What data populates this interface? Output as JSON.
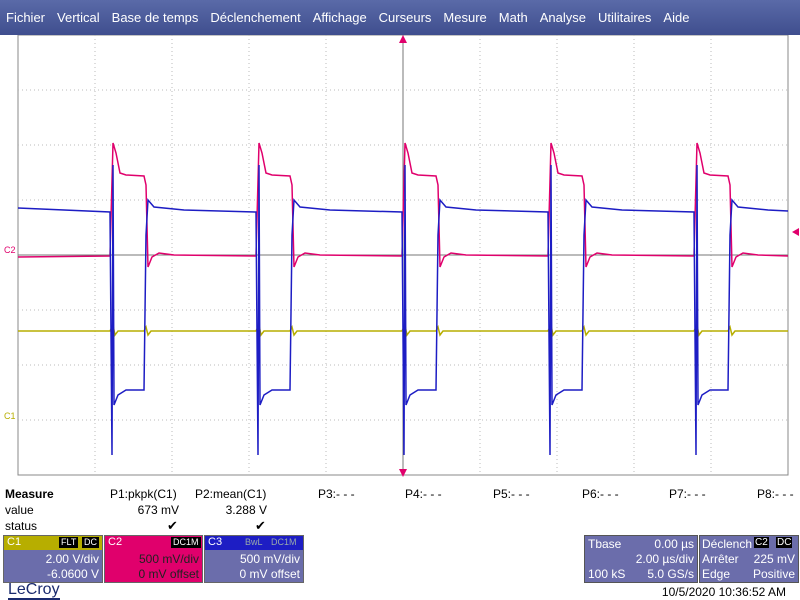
{
  "menu": [
    "Fichier",
    "Vertical",
    "Base de temps",
    "Déclenchement",
    "Affichage",
    "Curseurs",
    "Mesure",
    "Math",
    "Analyse",
    "Utilitaires",
    "Aide"
  ],
  "grid": {
    "h_divs": 8,
    "v_divs": 10
  },
  "markers": {
    "c2": "C2",
    "c1": "C1"
  },
  "colors": {
    "ch1": "#b7ae00",
    "ch2": "#e0006c",
    "ch3": "#1d1dc4",
    "grid": "#888888",
    "panel": "#6b6dab",
    "menu": "#4a5a9a"
  },
  "measure": {
    "row_labels": {
      "header": "Measure",
      "value": "value",
      "status": "status"
    },
    "params": [
      {
        "name": "P1:pkpk(C1)",
        "value": "673 mV",
        "status": "✔"
      },
      {
        "name": "P2:mean(C1)",
        "value": "3.288 V",
        "status": "✔"
      },
      {
        "name": "P3:- - -",
        "value": "",
        "status": ""
      },
      {
        "name": "P4:- - -",
        "value": "",
        "status": ""
      },
      {
        "name": "P5:- - -",
        "value": "",
        "status": ""
      },
      {
        "name": "P6:- - -",
        "value": "",
        "status": ""
      },
      {
        "name": "P7:- - -",
        "value": "",
        "status": ""
      },
      {
        "name": "P8:- - -",
        "value": "",
        "status": ""
      }
    ]
  },
  "channels": [
    {
      "name": "C1",
      "tags": [
        "FLT",
        "DC"
      ],
      "line1": "2.00 V/div",
      "line2": "-6.0600 V"
    },
    {
      "name": "C2",
      "tags": [
        "DC1M"
      ],
      "line1": "500 mV/div",
      "line2": "0 mV offset"
    },
    {
      "name": "C3",
      "tags": [
        "BwL",
        "DC1M"
      ],
      "line1": "500 mV/div",
      "line2": "0 mV offset"
    }
  ],
  "timebase": {
    "label": "Tbase",
    "delay": "0.00 µs",
    "per_div": "2.00 µs/div",
    "samples": "100 kS",
    "rate": "5.0 GS/s"
  },
  "trigger": {
    "label": "Déclench",
    "tags": [
      "C2",
      "DC"
    ],
    "mode": "Arrêter",
    "level": "225 mV",
    "type": "Edge",
    "slope": "Positive"
  },
  "brand": "LeCroy",
  "timestamp": "10/5/2020 10:36:52 AM"
}
